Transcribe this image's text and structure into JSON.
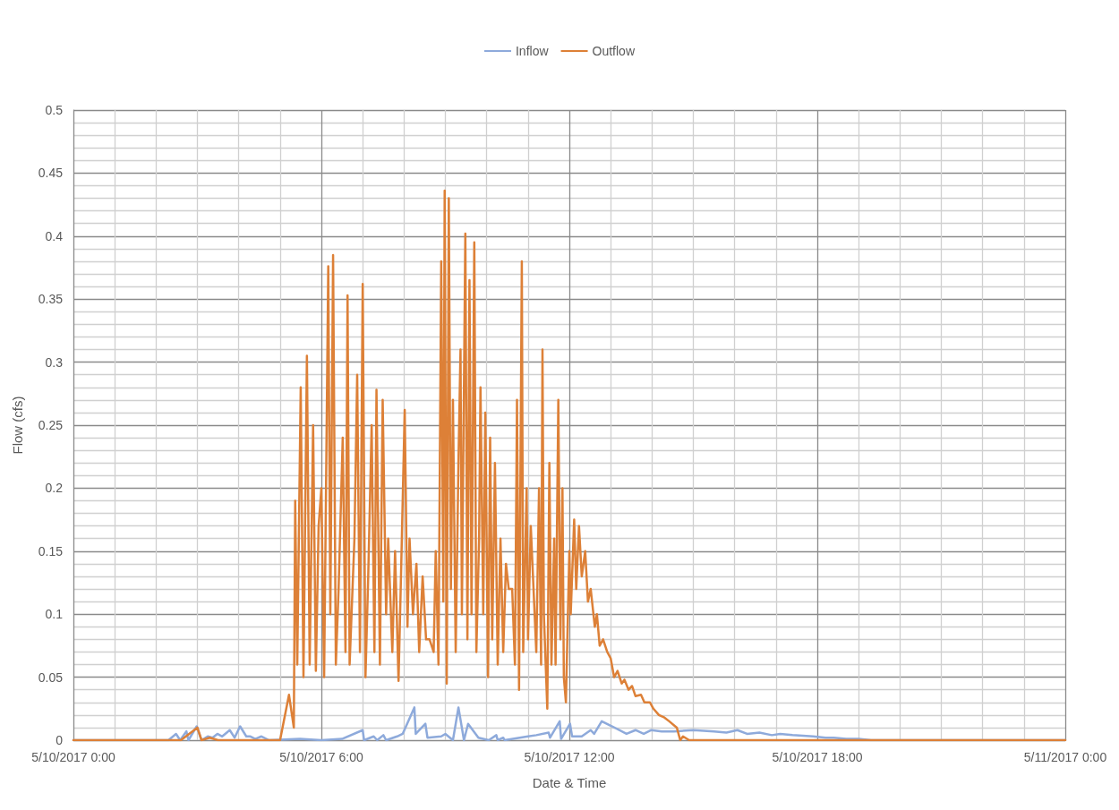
{
  "chart_data": {
    "type": "line",
    "xlabel": "Date & Time",
    "ylabel": "Flow (cfs)",
    "legend": "top",
    "grid": true,
    "line_style": "solid",
    "xlim": [
      "2017-05-10T00:00",
      "2017-05-11T00:00"
    ],
    "ylim": [
      0,
      0.5
    ],
    "xticks": [
      {
        "value": "2017-05-10T00:00",
        "label": "5/10/2017 0:00"
      },
      {
        "value": "2017-05-10T01:00",
        "label": null
      },
      {
        "value": "2017-05-10T02:00",
        "label": null
      },
      {
        "value": "2017-05-10T03:00",
        "label": null
      },
      {
        "value": "2017-05-10T04:00",
        "label": null
      },
      {
        "value": "2017-05-10T05:00",
        "label": null
      },
      {
        "value": "2017-05-10T06:00",
        "label": "5/10/2017 6:00"
      },
      {
        "value": "2017-05-10T07:00",
        "label": null
      },
      {
        "value": "2017-05-10T08:00",
        "label": null
      },
      {
        "value": "2017-05-10T09:00",
        "label": null
      },
      {
        "value": "2017-05-10T10:00",
        "label": null
      },
      {
        "value": "2017-05-10T11:00",
        "label": null
      },
      {
        "value": "2017-05-10T12:00",
        "label": "5/10/2017 12:00"
      },
      {
        "value": "2017-05-10T13:00",
        "label": null
      },
      {
        "value": "2017-05-10T14:00",
        "label": null
      },
      {
        "value": "2017-05-10T15:00",
        "label": null
      },
      {
        "value": "2017-05-10T16:00",
        "label": null
      },
      {
        "value": "2017-05-10T17:00",
        "label": null
      },
      {
        "value": "2017-05-10T18:00",
        "label": "5/10/2017 18:00"
      },
      {
        "value": "2017-05-10T19:00",
        "label": null
      },
      {
        "value": "2017-05-10T20:00",
        "label": null
      },
      {
        "value": "2017-05-10T21:00",
        "label": null
      },
      {
        "value": "2017-05-10T22:00",
        "label": null
      },
      {
        "value": "2017-05-10T23:00",
        "label": null
      },
      {
        "value": "2017-05-11T00:00",
        "label": "5/11/2017 0:00"
      }
    ],
    "yticks": [
      0,
      {
        "value": 0.01,
        "label": null
      },
      {
        "value": 0.02,
        "label": null
      },
      {
        "value": 0.03,
        "label": null
      },
      {
        "value": 0.04,
        "label": null
      },
      0.05,
      {
        "value": 0.06,
        "label": null
      },
      {
        "value": 0.07,
        "label": null
      },
      {
        "value": 0.08,
        "label": null
      },
      {
        "value": 0.09,
        "label": null
      },
      0.1,
      {
        "value": 0.11,
        "label": null
      },
      {
        "value": 0.12,
        "label": null
      },
      {
        "value": 0.13,
        "label": null
      },
      {
        "value": 0.14,
        "label": null
      },
      0.15,
      {
        "value": 0.16,
        "label": null
      },
      {
        "value": 0.17,
        "label": null
      },
      {
        "value": 0.18,
        "label": null
      },
      {
        "value": 0.19,
        "label": null
      },
      0.2,
      {
        "value": 0.21,
        "label": null
      },
      {
        "value": 0.22,
        "label": null
      },
      {
        "value": 0.23,
        "label": null
      },
      {
        "value": 0.24,
        "label": null
      },
      0.25,
      {
        "value": 0.26,
        "label": null
      },
      {
        "value": 0.27,
        "label": null
      },
      {
        "value": 0.28,
        "label": null
      },
      {
        "value": 0.29,
        "label": null
      },
      0.3,
      {
        "value": 0.31,
        "label": null
      },
      {
        "value": 0.32,
        "label": null
      },
      {
        "value": 0.33,
        "label": null
      },
      {
        "value": 0.34,
        "label": null
      },
      0.35,
      {
        "value": 0.36,
        "label": null
      },
      {
        "value": 0.37,
        "label": null
      },
      {
        "value": 0.38,
        "label": null
      },
      {
        "value": 0.39,
        "label": null
      },
      0.4,
      {
        "value": 0.41,
        "label": null
      },
      {
        "value": 0.42,
        "label": null
      },
      {
        "value": 0.43,
        "label": null
      },
      {
        "value": 0.44,
        "label": null
      },
      0.45,
      {
        "value": 0.46,
        "label": null
      },
      {
        "value": 0.47,
        "label": null
      },
      {
        "value": 0.48,
        "label": null
      },
      {
        "value": 0.49,
        "label": null
      },
      0.5
    ],
    "series": [
      {
        "name": "Inflow",
        "color": "#8eaadb",
        "x": [
          "2017-05-10T00:00",
          "2017-05-10T02:18",
          "2017-05-10T02:29",
          "2017-05-10T02:35",
          "2017-05-10T02:44",
          "2017-05-10T02:47",
          "2017-05-10T02:59",
          "2017-05-10T03:06",
          "2017-05-10T03:15",
          "2017-05-10T03:22",
          "2017-05-10T03:29",
          "2017-05-10T03:36",
          "2017-05-10T03:47",
          "2017-05-10T03:54",
          "2017-05-10T04:02",
          "2017-05-10T04:11",
          "2017-05-10T04:17",
          "2017-05-10T04:24",
          "2017-05-10T04:33",
          "2017-05-10T04:44",
          "2017-05-10T05:29",
          "2017-05-10T06:00",
          "2017-05-10T06:30",
          "2017-05-10T07:00",
          "2017-05-10T07:02",
          "2017-05-10T07:16",
          "2017-05-10T07:21",
          "2017-05-10T07:30",
          "2017-05-10T07:34",
          "2017-05-10T07:50",
          "2017-05-10T07:58",
          "2017-05-10T08:15",
          "2017-05-10T08:17",
          "2017-05-10T08:31",
          "2017-05-10T08:34",
          "2017-05-10T08:54",
          "2017-05-10T09:00",
          "2017-05-10T09:11",
          "2017-05-10T09:19",
          "2017-05-10T09:27",
          "2017-05-10T09:33",
          "2017-05-10T09:48",
          "2017-05-10T10:03",
          "2017-05-10T10:14",
          "2017-05-10T10:16",
          "2017-05-10T10:24",
          "2017-05-10T10:26",
          "2017-05-10T11:00",
          "2017-05-10T11:12",
          "2017-05-10T11:30",
          "2017-05-10T11:32",
          "2017-05-10T11:46",
          "2017-05-10T11:48",
          "2017-05-10T12:01",
          "2017-05-10T12:04",
          "2017-05-10T12:18",
          "2017-05-10T12:31",
          "2017-05-10T12:36",
          "2017-05-10T12:47",
          "2017-05-10T13:02",
          "2017-05-10T13:23",
          "2017-05-10T13:36",
          "2017-05-10T13:48",
          "2017-05-10T13:59",
          "2017-05-10T14:14",
          "2017-05-10T14:32",
          "2017-05-10T15:00",
          "2017-05-10T15:30",
          "2017-05-10T15:48",
          "2017-05-10T16:04",
          "2017-05-10T16:18",
          "2017-05-10T16:36",
          "2017-05-10T16:54",
          "2017-05-10T17:06",
          "2017-05-10T17:24",
          "2017-05-10T17:54",
          "2017-05-10T18:12",
          "2017-05-10T18:24",
          "2017-05-10T18:42",
          "2017-05-10T19:00",
          "2017-05-10T19:18",
          "2017-05-11T00:00"
        ],
        "values": [
          0,
          0,
          0.005,
          0,
          0.007,
          0,
          0.011,
          0,
          0.003,
          0.002,
          0.005,
          0.003,
          0.008,
          0.002,
          0.011,
          0.003,
          0.003,
          0.001,
          0.003,
          0,
          0.001,
          0,
          0.001,
          0.008,
          0,
          0.003,
          0,
          0.004,
          0,
          0.003,
          0.005,
          0.026,
          0.005,
          0.013,
          0.002,
          0.003,
          0.005,
          0,
          0.026,
          0,
          0.013,
          0.002,
          0,
          0.004,
          0,
          0.002,
          0,
          0.003,
          0.004,
          0.006,
          0.002,
          0.015,
          0.001,
          0.013,
          0.003,
          0.003,
          0.008,
          0.005,
          0.015,
          0.011,
          0.005,
          0.008,
          0.005,
          0.008,
          0.007,
          0.007,
          0.008,
          0.007,
          0.006,
          0.008,
          0.005,
          0.006,
          0.004,
          0.005,
          0.004,
          0.003,
          0.002,
          0.002,
          0.001,
          0.001,
          0,
          0
        ]
      },
      {
        "name": "Outflow",
        "color": "#dd8037",
        "x": [
          "2017-05-10T00:00",
          "2017-05-10T02:36",
          "2017-05-10T03:00",
          "2017-05-10T03:06",
          "2017-05-10T03:18",
          "2017-05-10T03:30",
          "2017-05-10T05:00",
          "2017-05-10T05:13",
          "2017-05-10T05:20",
          "2017-05-10T05:22",
          "2017-05-10T05:25",
          "2017-05-10T05:30",
          "2017-05-10T05:34",
          "2017-05-10T05:39",
          "2017-05-10T05:43",
          "2017-05-10T05:48",
          "2017-05-10T05:52",
          "2017-05-10T05:56",
          "2017-05-10T06:00",
          "2017-05-10T06:04",
          "2017-05-10T06:10",
          "2017-05-10T06:13",
          "2017-05-10T06:17",
          "2017-05-10T06:21",
          "2017-05-10T06:25",
          "2017-05-10T06:31",
          "2017-05-10T06:35",
          "2017-05-10T06:38",
          "2017-05-10T06:41",
          "2017-05-10T06:48",
          "2017-05-10T06:52",
          "2017-05-10T06:56",
          "2017-05-10T07:00",
          "2017-05-10T07:04",
          "2017-05-10T07:08",
          "2017-05-10T07:13",
          "2017-05-10T07:17",
          "2017-05-10T07:20",
          "2017-05-10T07:25",
          "2017-05-10T07:29",
          "2017-05-10T07:34",
          "2017-05-10T07:37",
          "2017-05-10T07:43",
          "2017-05-10T07:47",
          "2017-05-10T07:52",
          "2017-05-10T07:56",
          "2017-05-10T08:01",
          "2017-05-10T08:05",
          "2017-05-10T08:08",
          "2017-05-10T08:13",
          "2017-05-10T08:18",
          "2017-05-10T08:22",
          "2017-05-10T08:27",
          "2017-05-10T08:32",
          "2017-05-10T08:37",
          "2017-05-10T08:43",
          "2017-05-10T08:46",
          "2017-05-10T08:50",
          "2017-05-10T08:54",
          "2017-05-10T08:57",
          "2017-05-10T08:59",
          "2017-05-10T09:02",
          "2017-05-10T09:05",
          "2017-05-10T09:08",
          "2017-05-10T09:11",
          "2017-05-10T09:15",
          "2017-05-10T09:19",
          "2017-05-10T09:22",
          "2017-05-10T09:24",
          "2017-05-10T09:29",
          "2017-05-10T09:32",
          "2017-05-10T09:35",
          "2017-05-10T09:38",
          "2017-05-10T09:42",
          "2017-05-10T09:45",
          "2017-05-10T09:49",
          "2017-05-10T09:51",
          "2017-05-10T09:55",
          "2017-05-10T09:58",
          "2017-05-10T10:02",
          "2017-05-10T10:05",
          "2017-05-10T10:08",
          "2017-05-10T10:12",
          "2017-05-10T10:16",
          "2017-05-10T10:20",
          "2017-05-10T10:24",
          "2017-05-10T10:28",
          "2017-05-10T10:32",
          "2017-05-10T10:37",
          "2017-05-10T10:41",
          "2017-05-10T10:44",
          "2017-05-10T10:47",
          "2017-05-10T10:51",
          "2017-05-10T10:53",
          "2017-05-10T10:58",
          "2017-05-10T11:00",
          "2017-05-10T11:04",
          "2017-05-10T11:08",
          "2017-05-10T11:12",
          "2017-05-10T11:16",
          "2017-05-10T11:19",
          "2017-05-10T11:21",
          "2017-05-10T11:23",
          "2017-05-10T11:28",
          "2017-05-10T11:31",
          "2017-05-10T11:34",
          "2017-05-10T11:38",
          "2017-05-10T11:40",
          "2017-05-10T11:44",
          "2017-05-10T11:47",
          "2017-05-10T11:50",
          "2017-05-10T11:52",
          "2017-05-10T11:55",
          "2017-05-10T12:00",
          "2017-05-10T12:02",
          "2017-05-10T12:07",
          "2017-05-10T12:10",
          "2017-05-10T12:14",
          "2017-05-10T12:18",
          "2017-05-10T12:23",
          "2017-05-10T12:27",
          "2017-05-10T12:31",
          "2017-05-10T12:37",
          "2017-05-10T12:40",
          "2017-05-10T12:44",
          "2017-05-10T12:49",
          "2017-05-10T12:55",
          "2017-05-10T13:00",
          "2017-05-10T13:05",
          "2017-05-10T13:10",
          "2017-05-10T13:16",
          "2017-05-10T13:20",
          "2017-05-10T13:26",
          "2017-05-10T13:31",
          "2017-05-10T13:36",
          "2017-05-10T13:44",
          "2017-05-10T13:49",
          "2017-05-10T13:57",
          "2017-05-10T14:02",
          "2017-05-10T14:10",
          "2017-05-10T14:18",
          "2017-05-10T14:25",
          "2017-05-10T14:36",
          "2017-05-10T14:41",
          "2017-05-10T14:45",
          "2017-05-10T14:54",
          "2017-05-11T00:00"
        ],
        "values": [
          0,
          0,
          0.01,
          0,
          0.002,
          0,
          0,
          0.036,
          0.01,
          0.19,
          0.06,
          0.28,
          0.05,
          0.305,
          0.06,
          0.25,
          0.055,
          0.17,
          0.2,
          0.05,
          0.376,
          0.1,
          0.385,
          0.06,
          0.12,
          0.24,
          0.07,
          0.353,
          0.06,
          0.16,
          0.29,
          0.07,
          0.362,
          0.05,
          0.13,
          0.25,
          0.07,
          0.278,
          0.06,
          0.27,
          0.1,
          0.16,
          0.07,
          0.15,
          0.047,
          0.14,
          0.262,
          0.09,
          0.16,
          0.1,
          0.14,
          0.07,
          0.13,
          0.08,
          0.08,
          0.07,
          0.15,
          0.06,
          0.38,
          0.11,
          0.436,
          0.045,
          0.43,
          0.12,
          0.27,
          0.07,
          0.22,
          0.31,
          0.1,
          0.402,
          0.08,
          0.365,
          0.1,
          0.395,
          0.07,
          0.16,
          0.28,
          0.1,
          0.26,
          0.05,
          0.24,
          0.08,
          0.22,
          0.06,
          0.16,
          0.07,
          0.14,
          0.12,
          0.12,
          0.06,
          0.27,
          0.04,
          0.38,
          0.07,
          0.2,
          0.08,
          0.17,
          0.12,
          0.07,
          0.2,
          0.06,
          0.31,
          0.1,
          0.025,
          0.22,
          0.06,
          0.16,
          0.06,
          0.27,
          0.08,
          0.2,
          0.05,
          0.03,
          0.15,
          0.1,
          0.175,
          0.12,
          0.17,
          0.13,
          0.15,
          0.11,
          0.12,
          0.09,
          0.1,
          0.075,
          0.08,
          0.07,
          0.065,
          0.05,
          0.055,
          0.045,
          0.048,
          0.04,
          0.043,
          0.035,
          0.036,
          0.03,
          0.03,
          0.025,
          0.02,
          0.018,
          0.015,
          0.01,
          0,
          0.003,
          0,
          0
        ]
      }
    ]
  }
}
